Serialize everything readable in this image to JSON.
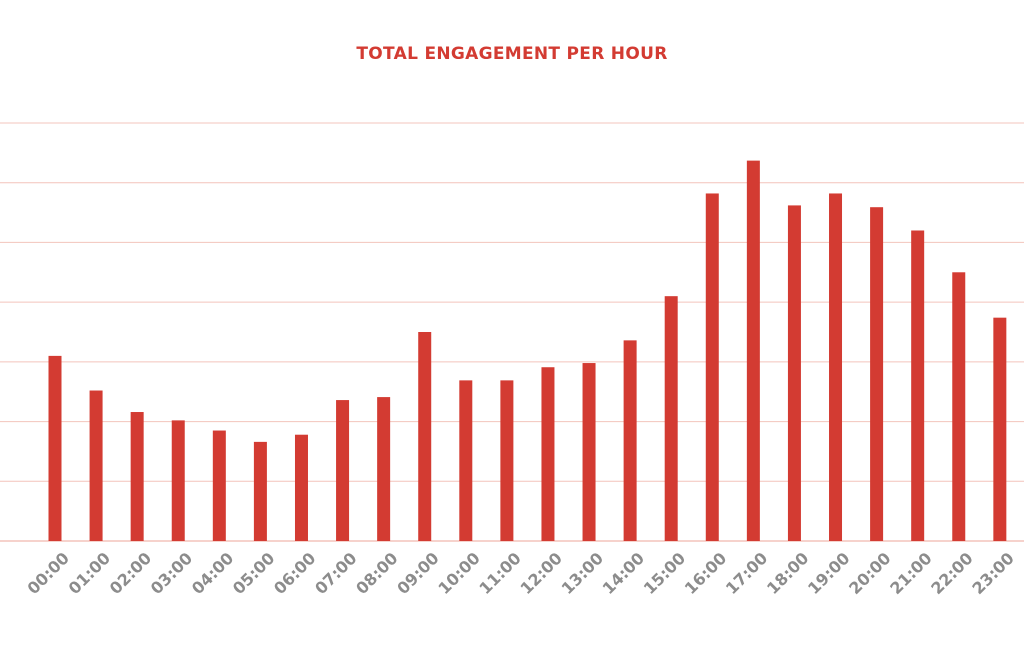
{
  "chart_data": {
    "type": "bar",
    "title": "TOTAL ENGAGEMENT PER HOUR",
    "xlabel": "",
    "ylabel": "",
    "categories": [
      "00:00",
      "01:00",
      "02:00",
      "03:00",
      "04:00",
      "05:00",
      "06:00",
      "07:00",
      "08:00",
      "09:00",
      "10:00",
      "11:00",
      "12:00",
      "13:00",
      "14:00",
      "15:00",
      "16:00",
      "17:00",
      "18:00",
      "19:00",
      "20:00",
      "21:00",
      "22:00",
      "23:00"
    ],
    "values": [
      3.1,
      2.52,
      2.16,
      2.02,
      1.85,
      1.66,
      1.78,
      2.36,
      2.41,
      3.5,
      2.69,
      2.69,
      2.91,
      2.98,
      3.36,
      4.1,
      5.82,
      6.37,
      5.62,
      5.82,
      5.59,
      5.2,
      4.5,
      3.74
    ],
    "ylim": [
      0,
      7
    ],
    "gridlines": 7,
    "grid": true,
    "legend": "none",
    "y_tick_labels_shown": false,
    "colors": {
      "bar": "#d33b32",
      "title": "#d33b32",
      "grid": "#f3c4bc",
      "tick_label": "#8c8c8c"
    }
  }
}
